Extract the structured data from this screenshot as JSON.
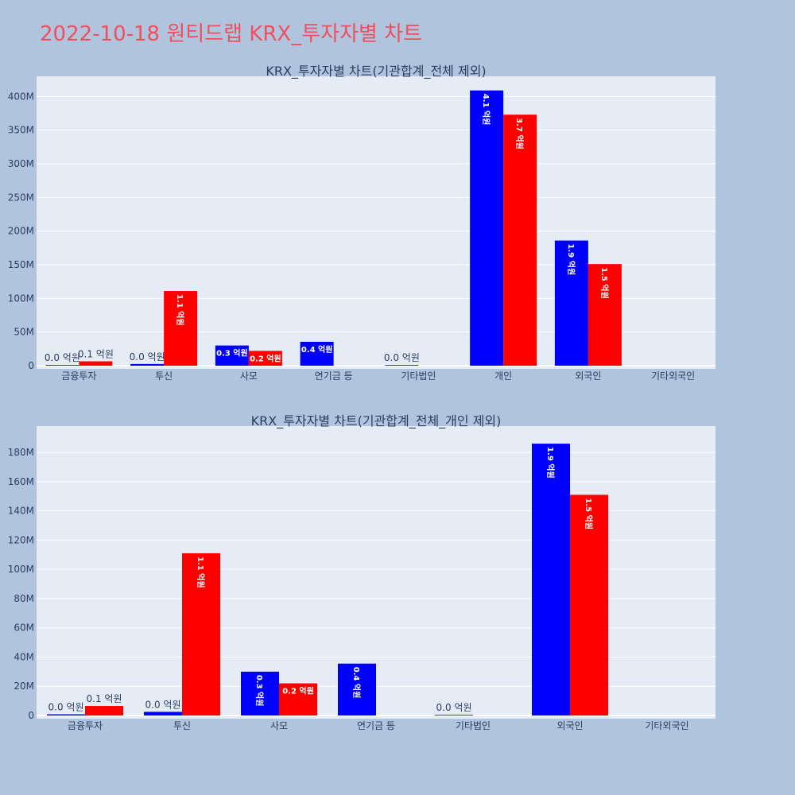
{
  "page": {
    "title": "2022-10-18 원티드랩 KRX_투자자별 차트"
  },
  "colors": {
    "background": "#b0c4de",
    "plot_bg": "#e5ecf6",
    "grid": "#ffffff",
    "title": "#ef4f5f",
    "text": "#2a3f5f",
    "series_a": "#0000ff",
    "series_b": "#ff0000"
  },
  "chart_data": [
    {
      "type": "bar",
      "title": "KRX_투자자별 차트(기관합계_전체 제외)",
      "categories": [
        "금융투자",
        "투신",
        "사모",
        "연기금 등",
        "기타법인",
        "개인",
        "외국인",
        "기타외국인"
      ],
      "ylim": [
        0,
        430000000
      ],
      "yticks": [
        0,
        50000000,
        100000000,
        150000000,
        200000000,
        250000000,
        300000000,
        350000000,
        400000000
      ],
      "ytick_labels": [
        "0",
        "50M",
        "100M",
        "150M",
        "200M",
        "250M",
        "300M",
        "350M",
        "400M"
      ],
      "grid": true,
      "series": [
        {
          "color": "#0000ff",
          "values": [
            800000,
            2500000,
            30000000,
            35500000,
            300000,
            409000000,
            186000000,
            null
          ],
          "labels": [
            "0.0 억원",
            "0.0 억원",
            "0.3 억원",
            "0.4 억원",
            "0.0 억원",
            "4.1 억원",
            "1.9 억원",
            null
          ]
        },
        {
          "color": "#ff0000",
          "values": [
            6500000,
            111000000,
            22000000,
            null,
            null,
            373000000,
            151000000,
            null
          ],
          "labels": [
            "0.1 억원",
            "1.1 억원",
            "0.2 억원",
            null,
            null,
            "3.7 억원",
            "1.5 억원",
            null
          ]
        }
      ]
    },
    {
      "type": "bar",
      "title": "KRX_투자자별 차트(기관합계_전체_개인 제외)",
      "categories": [
        "금융투자",
        "투신",
        "사모",
        "연기금 등",
        "기타법인",
        "외국인",
        "기타외국인"
      ],
      "ylim": [
        0,
        198000000
      ],
      "yticks": [
        0,
        20000000,
        40000000,
        60000000,
        80000000,
        100000000,
        120000000,
        140000000,
        160000000,
        180000000
      ],
      "ytick_labels": [
        "0",
        "20M",
        "40M",
        "60M",
        "80M",
        "100M",
        "120M",
        "140M",
        "160M",
        "180M"
      ],
      "grid": true,
      "series": [
        {
          "color": "#0000ff",
          "values": [
            800000,
            2500000,
            30000000,
            35500000,
            300000,
            186000000,
            null
          ],
          "labels": [
            "0.0 억원",
            "0.0 억원",
            "0.3 억원",
            "0.4 억원",
            "0.0 억원",
            "1.9 억원",
            null
          ]
        },
        {
          "color": "#ff0000",
          "values": [
            6500000,
            111000000,
            22000000,
            null,
            null,
            151000000,
            null
          ],
          "labels": [
            "0.1 억원",
            "1.1 억원",
            "0.2 억원",
            null,
            null,
            "1.5 억원",
            null
          ]
        }
      ]
    }
  ]
}
